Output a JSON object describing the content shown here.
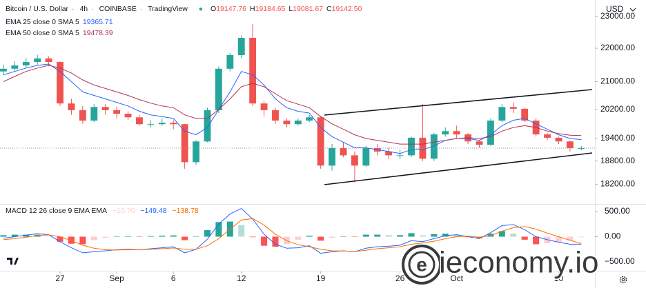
{
  "currency": "USD",
  "watermark": "ieconomy.io",
  "header": {
    "symbol": "Bitcoin / U.S. Dollar",
    "interval": "4h",
    "exchange": "COINBASE",
    "source": "TradingView",
    "ohlc_labels": [
      "O",
      "H",
      "L",
      "C"
    ],
    "ohlc_values": [
      "19147.76",
      "19184.65",
      "19081.67",
      "19142.50"
    ]
  },
  "chart_data": [
    {
      "type": "candlestick",
      "log_scale": true,
      "up_color": "#26a69a",
      "down_color": "#ef5350",
      "x": [
        2,
        3,
        4,
        5,
        6,
        7,
        8,
        9,
        10,
        11,
        12,
        13,
        14,
        15,
        16,
        17,
        18,
        19,
        20,
        21,
        22,
        23,
        24,
        25,
        26,
        27,
        28,
        29,
        30,
        31,
        32,
        33,
        34,
        35,
        36,
        37,
        38,
        39,
        40,
        41,
        42,
        43,
        44,
        45,
        46,
        47,
        48,
        49,
        50,
        51,
        52,
        53
      ],
      "open": [
        21300,
        21380,
        21480,
        21580,
        21690,
        21580,
        20370,
        20180,
        19890,
        20270,
        20180,
        20080,
        19980,
        19790,
        19790,
        19830,
        19790,
        18770,
        19320,
        20180,
        21380,
        21790,
        22320,
        20370,
        20180,
        19890,
        19790,
        19890,
        19980,
        18680,
        19140,
        18950,
        18680,
        19140,
        19050,
        18950,
        18950,
        19420,
        18860,
        19510,
        19600,
        19510,
        19320,
        19230,
        19890,
        20270,
        20220,
        19890,
        19510,
        19420,
        19320,
        19140
      ],
      "high": [
        21500,
        21600,
        21700,
        21800,
        21750,
        21600,
        20500,
        20300,
        20350,
        20350,
        20280,
        20150,
        20050,
        19900,
        19950,
        19900,
        19800,
        19350,
        20250,
        21450,
        21850,
        22400,
        22750,
        20450,
        20250,
        19950,
        19950,
        20050,
        20000,
        19250,
        19300,
        19050,
        19200,
        19250,
        19150,
        19100,
        19450,
        20350,
        19550,
        19700,
        19750,
        19550,
        19350,
        19950,
        20350,
        20400,
        20250,
        19950,
        19550,
        19450,
        19350,
        19200
      ],
      "low": [
        21200,
        21300,
        21400,
        21500,
        21450,
        20300,
        20050,
        19800,
        19850,
        20050,
        19950,
        19900,
        19750,
        19700,
        19750,
        19650,
        18600,
        18700,
        19300,
        20100,
        21300,
        21700,
        20300,
        20000,
        19800,
        19700,
        19750,
        19850,
        18600,
        18550,
        18900,
        18250,
        18650,
        18950,
        18850,
        18850,
        18900,
        18800,
        18800,
        19450,
        19400,
        19250,
        19150,
        19200,
        19850,
        20100,
        19850,
        19450,
        19350,
        19250,
        19050,
        19080
      ],
      "close": [
        21380,
        21480,
        21580,
        21690,
        21580,
        20370,
        20180,
        19890,
        20270,
        20180,
        20080,
        19980,
        19790,
        19790,
        19830,
        19790,
        18770,
        19320,
        20180,
        21380,
        21790,
        22320,
        20370,
        20180,
        19890,
        19790,
        19890,
        19980,
        18680,
        19140,
        18950,
        18680,
        19140,
        19050,
        18950,
        18950,
        19420,
        18860,
        19510,
        19600,
        19510,
        19320,
        19230,
        19890,
        20270,
        20220,
        19890,
        19510,
        19420,
        19320,
        19140,
        19140
      ],
      "series": [
        {
          "name": "EMA 25 close 0 SMA 5",
          "color": "#2962ff",
          "value_label": "19365.71",
          "values": [
            21200,
            21300,
            21400,
            21480,
            21520,
            21300,
            21000,
            20700,
            20600,
            20500,
            20400,
            20300,
            20150,
            20050,
            20000,
            19950,
            19600,
            19500,
            19700,
            20200,
            20700,
            21300,
            21200,
            20900,
            20500,
            20250,
            20150,
            20100,
            19700,
            19450,
            19300,
            19150,
            19150,
            19100,
            19050,
            19000,
            19100,
            19100,
            19200,
            19350,
            19400,
            19400,
            19350,
            19500,
            19750,
            19900,
            19950,
            19800,
            19650,
            19500,
            19400,
            19370
          ]
        },
        {
          "name": "EMA 50 close 0 SMA 5",
          "color": "#b2334f",
          "value_label": "19478.39",
          "values": [
            21000,
            21150,
            21300,
            21400,
            21480,
            21400,
            21250,
            21050,
            20900,
            20800,
            20700,
            20600,
            20480,
            20380,
            20300,
            20250,
            20050,
            19950,
            19950,
            20200,
            20500,
            20850,
            20950,
            20850,
            20650,
            20450,
            20350,
            20250,
            20000,
            19800,
            19650,
            19500,
            19400,
            19350,
            19300,
            19250,
            19250,
            19250,
            19300,
            19350,
            19400,
            19420,
            19400,
            19450,
            19600,
            19700,
            19750,
            19700,
            19600,
            19530,
            19490,
            19480
          ]
        }
      ],
      "xlim": [
        1.7,
        54.2
      ],
      "ylim": [
        17725,
        23530
      ],
      "yticks": [
        {
          "value": 18200,
          "label": "18200.00"
        },
        {
          "value": 18800,
          "label": "18800.00"
        },
        {
          "value": 19400,
          "label": "19400.00"
        },
        {
          "value": 20200,
          "label": "20200.00"
        },
        {
          "value": 21000,
          "label": "21000.00"
        },
        {
          "value": 22000,
          "label": "22000.00"
        },
        {
          "value": 23000,
          "label": "23000.00"
        }
      ]
    },
    {
      "type": "macd",
      "title": "MACD 12 26 close 9 EMA EMA",
      "x": [
        2,
        3,
        4,
        5,
        6,
        7,
        8,
        9,
        10,
        11,
        12,
        13,
        14,
        15,
        16,
        17,
        18,
        19,
        20,
        21,
        22,
        23,
        24,
        25,
        26,
        27,
        28,
        29,
        30,
        31,
        32,
        33,
        34,
        35,
        36,
        37,
        38,
        39,
        40,
        41,
        42,
        43,
        44,
        45,
        46,
        47,
        48,
        49,
        50,
        51,
        52,
        53
      ],
      "histogram": {
        "name": "Histogram",
        "value_label": "−10.70",
        "colors": [
          "#26a69a",
          "#b2dfdb",
          "#ff5252",
          "#ffcdd2"
        ],
        "values": [
          30,
          40,
          40,
          40,
          5,
          -100,
          -140,
          -150,
          -70,
          -20,
          5,
          10,
          -2,
          12,
          20,
          25,
          -70,
          0,
          130,
          290,
          300,
          230,
          -10,
          -180,
          -200,
          -150,
          -60,
          20,
          -80,
          -20,
          5,
          -5,
          40,
          40,
          30,
          30,
          70,
          25,
          50,
          60,
          40,
          -10,
          -30,
          60,
          110,
          60,
          -60,
          -150,
          -130,
          -110,
          -80,
          -10.7
        ]
      },
      "series": [
        {
          "name": "MACD",
          "color": "#2962ff",
          "value_label": "−149.48",
          "values": [
            -30,
            0,
            30,
            60,
            40,
            -100,
            -220,
            -320,
            -300,
            -280,
            -260,
            -250,
            -260,
            -240,
            -220,
            -200,
            -320,
            -250,
            -50,
            250,
            450,
            560,
            350,
            50,
            -150,
            -230,
            -220,
            -180,
            -330,
            -300,
            -280,
            -300,
            -230,
            -200,
            -190,
            -170,
            -80,
            -100,
            -40,
            20,
            40,
            0,
            -40,
            80,
            220,
            240,
            140,
            0,
            -60,
            -110,
            -150,
            -149.48
          ]
        },
        {
          "name": "Signal",
          "color": "#ff6d00",
          "value_label": "−138.78",
          "values": [
            -60,
            -40,
            -10,
            20,
            35,
            0,
            -80,
            -170,
            -230,
            -260,
            -265,
            -260,
            -258,
            -252,
            -240,
            -225,
            -250,
            -250,
            -180,
            -40,
            150,
            330,
            360,
            230,
            50,
            -80,
            -160,
            -200,
            -250,
            -280,
            -285,
            -295,
            -270,
            -240,
            -220,
            -200,
            -150,
            -125,
            -90,
            -40,
            0,
            10,
            -10,
            20,
            110,
            180,
            200,
            150,
            70,
            0,
            -70,
            -138.78
          ]
        }
      ],
      "xlim": [
        1.7,
        54.2
      ],
      "ylim": [
        -705,
        623
      ],
      "yticks": [
        {
          "value": -500,
          "label": "−500.00"
        },
        {
          "value": 0,
          "label": "0.00"
        },
        {
          "value": 500,
          "label": "500.00"
        }
      ],
      "xticks": [
        {
          "value": 7,
          "label": "27"
        },
        {
          "value": 12,
          "label": "Sep"
        },
        {
          "value": 17,
          "label": "6"
        },
        {
          "value": 23,
          "label": "12"
        },
        {
          "value": 30,
          "label": "19"
        },
        {
          "value": 37,
          "label": "26"
        },
        {
          "value": 42,
          "label": "Oct"
        },
        {
          "value": 51,
          "label": "10"
        }
      ]
    }
  ]
}
